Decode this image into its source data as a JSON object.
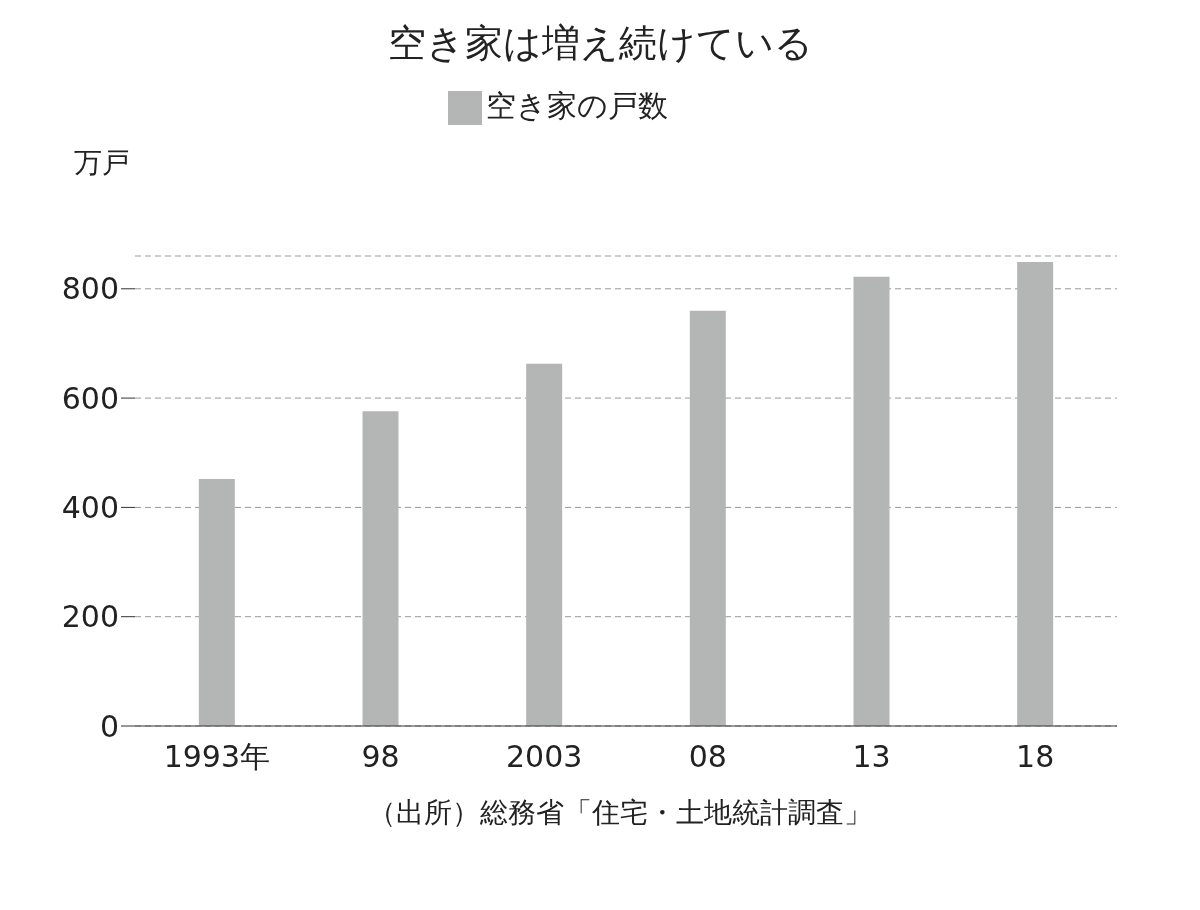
{
  "chart_data": {
    "type": "bar",
    "title": "空き家は増え続けている",
    "ylabel": "万戸",
    "categories": [
      "1993年",
      "98",
      "2003",
      "08",
      "13",
      "18"
    ],
    "series": [
      {
        "name": "空き家の戸数",
        "color": "#b4b5b5",
        "values": [
          452,
          576,
          663,
          760,
          822,
          849
        ]
      }
    ],
    "ylim": [
      0,
      860
    ],
    "yticks": [
      0,
      200,
      400,
      600,
      800
    ],
    "grid": "y",
    "legend": "top",
    "annotations": [
      "（出所）総務省「住宅・土地統計調査」"
    ]
  }
}
